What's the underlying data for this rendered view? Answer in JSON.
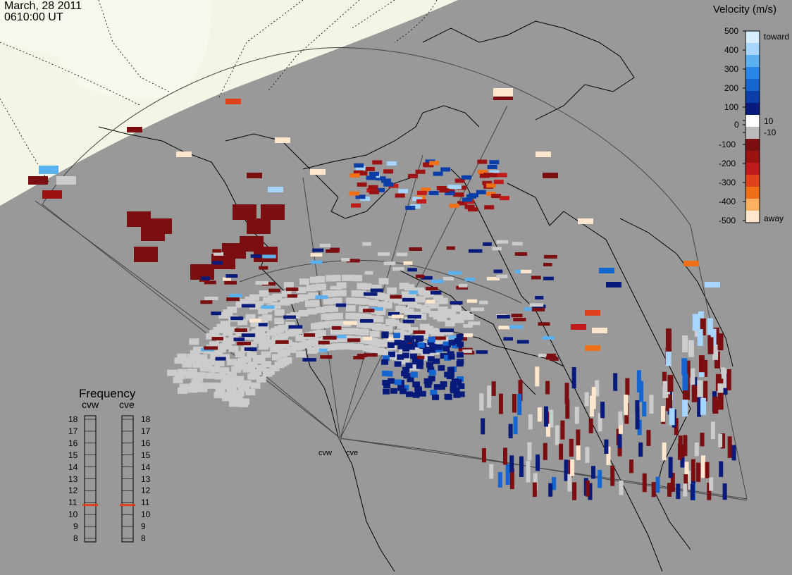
{
  "header": {
    "date": "March, 28 2011",
    "time": "0610:00 UT"
  },
  "radars": [
    {
      "name": "cvw",
      "tuning_frequency_mhz": 10.8
    },
    {
      "name": "cve",
      "tuning_frequency_mhz": 10.8
    }
  ],
  "colorbar": {
    "title": "Velocity (m/s)",
    "ticks": [
      "500",
      "400",
      "300",
      "200",
      "100",
      "10",
      "0",
      "-10",
      "-100",
      "-200",
      "-300",
      "-400",
      "-500"
    ],
    "end_labels": {
      "toward": "toward",
      "away": "away"
    },
    "colors": [
      "#d6eeff",
      "#a6d6ff",
      "#5bb0f0",
      "#2a86e6",
      "#1565d0",
      "#0b3ea6",
      "#081a7a",
      "#ffffff",
      "#bbbbbb",
      "#7a0e10",
      "#9a1212",
      "#c01a1a",
      "#e0401a",
      "#f07018",
      "#ffb060",
      "#ffe6cc"
    ]
  },
  "frequency_panel": {
    "title": "Frequency",
    "columns": [
      "cvw",
      "cve"
    ],
    "scale": [
      "18",
      "17",
      "16",
      "15",
      "14",
      "13",
      "12",
      "11",
      "10",
      "9",
      "8"
    ],
    "marker_color": "#e0401a"
  },
  "map": {
    "background": "#999999",
    "daylight_color": "#f5f5e6",
    "ground_scatter_color": "#cccccc"
  }
}
